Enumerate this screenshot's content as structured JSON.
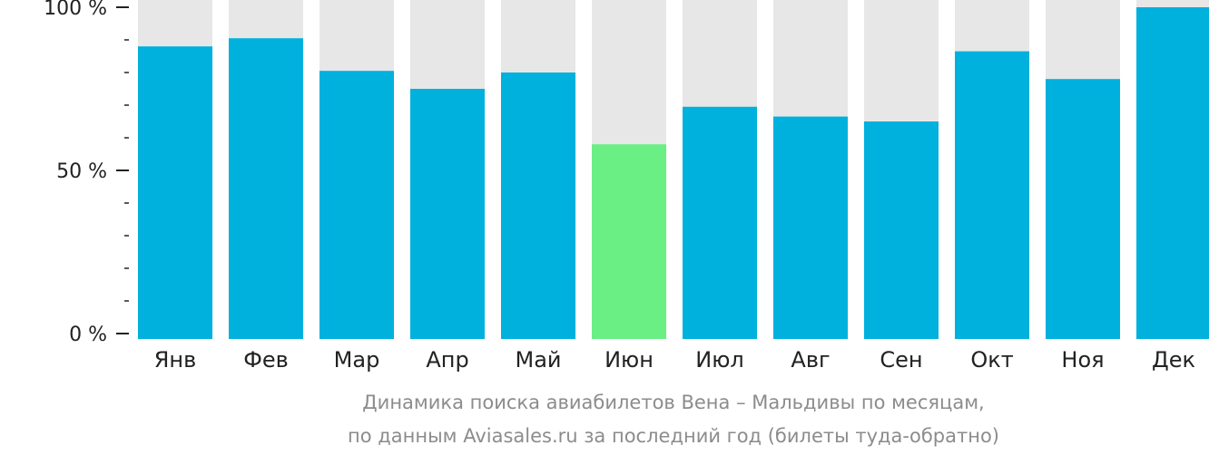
{
  "chart_data": {
    "type": "bar",
    "categories": [
      "Янв",
      "Фев",
      "Мар",
      "Апр",
      "Май",
      "Июн",
      "Июл",
      "Авг",
      "Сен",
      "Окт",
      "Ноя",
      "Дек"
    ],
    "values": [
      88,
      90.5,
      80.5,
      75,
      80,
      58,
      69.5,
      66.5,
      65,
      86.5,
      78,
      100
    ],
    "highlight_index": 5,
    "ylim": [
      0,
      100
    ],
    "yticks": [
      {
        "value": 0,
        "label": "0 %"
      },
      {
        "value": 50,
        "label": "50 %"
      },
      {
        "value": 100,
        "label": "100 %"
      }
    ],
    "minor_tick_step": 10,
    "caption_line1": "Динамика поиска авиабилетов Вена – Мальдивы по месяцам,",
    "caption_line2": "по данным Aviasales.ru за последний год (билеты туда-обратно)",
    "colors": {
      "bar": "#00b0dd",
      "highlight": "#6aef85",
      "background_bar": "#e7e7e7",
      "axis": "#222222",
      "caption": "#8c8c8c"
    }
  }
}
